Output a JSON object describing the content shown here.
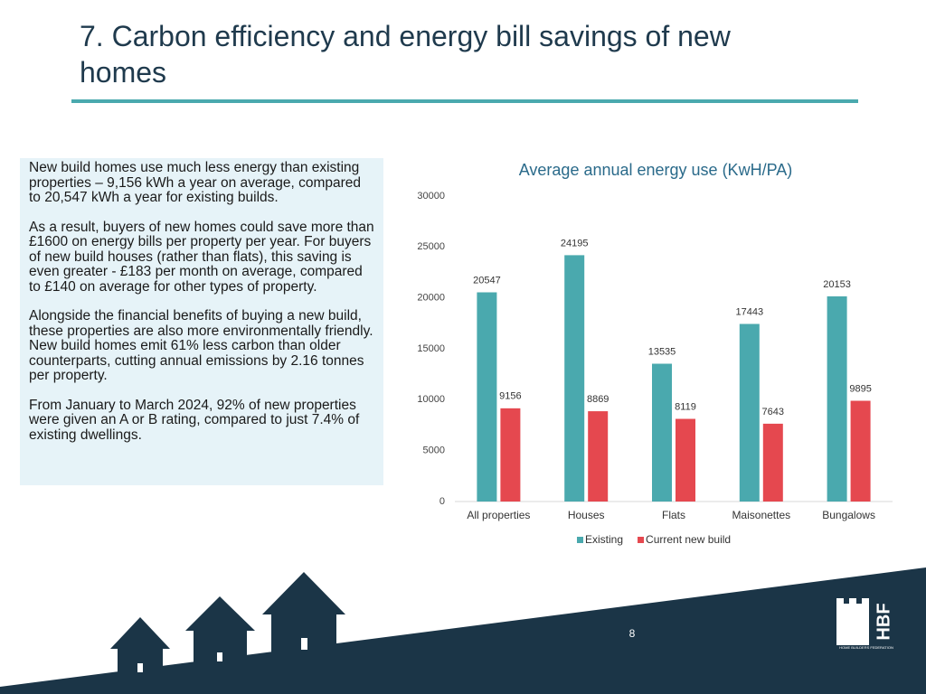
{
  "title": "7. Carbon efficiency and energy bill savings of new homes",
  "text_box": {
    "paragraphs": [
      "New build homes use much less energy than existing properties – 9,156 kWh a year on average, compared to 20,547 kWh a year for existing builds.",
      "As a result, buyers of new homes could save more than £1600 on energy bills per property per year. For buyers of new build houses (rather than flats), this saving is even greater - £183 per month on average, compared to £140 on average for other types of property.",
      "Alongside the financial benefits of buying a new build, these properties are also more environmentally friendly. New build homes emit 61% less carbon than older counterparts, cutting annual emissions by 2.16 tonnes per property.",
      "From January to March 2024, 92% of new properties were given an A or B rating, compared to just 7.4% of existing dwellings."
    ]
  },
  "chart_data": {
    "type": "bar",
    "title": "Average annual energy use (KwH/PA)",
    "categories": [
      "All properties",
      "Houses",
      "Flats",
      "Maisonettes",
      "Bungalows"
    ],
    "series": [
      {
        "name": "Existing",
        "color": "#4aa9ae",
        "values": [
          20547,
          24195,
          13535,
          17443,
          20153
        ]
      },
      {
        "name": "Current new build",
        "color": "#e5484f",
        "values": [
          9156,
          8869,
          8119,
          7643,
          9895
        ]
      }
    ],
    "ylim": [
      0,
      30000
    ],
    "yticks": [
      0,
      5000,
      10000,
      15000,
      20000,
      25000,
      30000
    ],
    "grid": false,
    "legend": "bottom"
  },
  "page_number": "8",
  "logo": {
    "text": "HBF",
    "subtitle": "HOME BUILDERS FEDERATION"
  }
}
